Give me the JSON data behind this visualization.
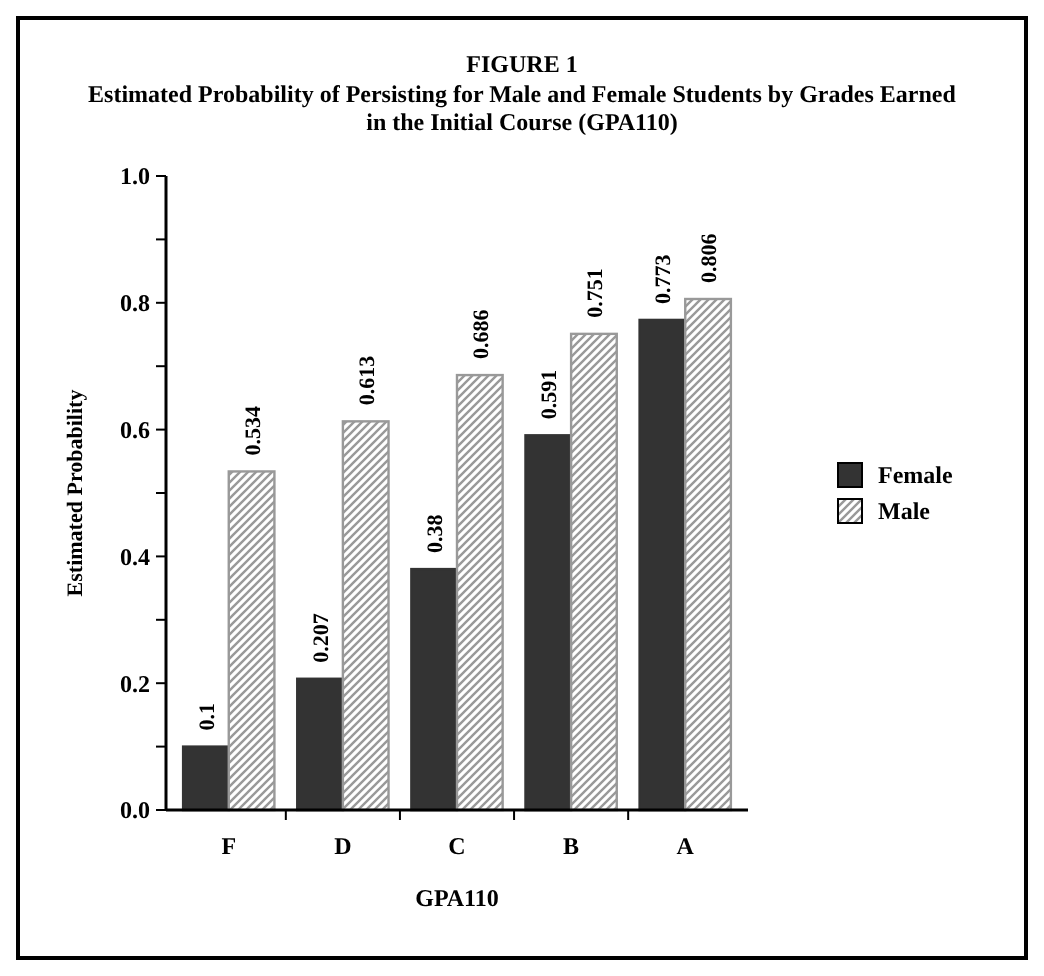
{
  "chart_data": {
    "type": "bar",
    "title": "FIGURE 1",
    "subtitle": "Estimated Probability of Persisting for Male and Female Students by Grades Earned in the Initial Course (GPA110)",
    "xlabel": "GPA110",
    "ylabel": "Estimated Probability",
    "categories": [
      "F",
      "D",
      "C",
      "B",
      "A"
    ],
    "series": [
      {
        "name": "Female",
        "color": "#333333",
        "values": [
          0.1,
          0.207,
          0.38,
          0.591,
          0.773
        ]
      },
      {
        "name": "Male",
        "color": "#999999",
        "values": [
          0.534,
          0.613,
          0.686,
          0.751,
          0.806
        ]
      }
    ],
    "ylim": [
      0,
      1
    ],
    "yticks": [
      {
        "value": 0,
        "label": "0.0"
      },
      {
        "value": 0.1,
        "label": null
      },
      0.2,
      {
        "value": 0.3,
        "label": null
      },
      0.4,
      {
        "value": 0.5,
        "label": null
      },
      0.6,
      {
        "value": 0.7,
        "label": null
      },
      0.8,
      {
        "value": 0.9,
        "label": null
      },
      {
        "value": 1,
        "label": "1.0"
      }
    ],
    "data_labels": true,
    "legend": "right"
  }
}
